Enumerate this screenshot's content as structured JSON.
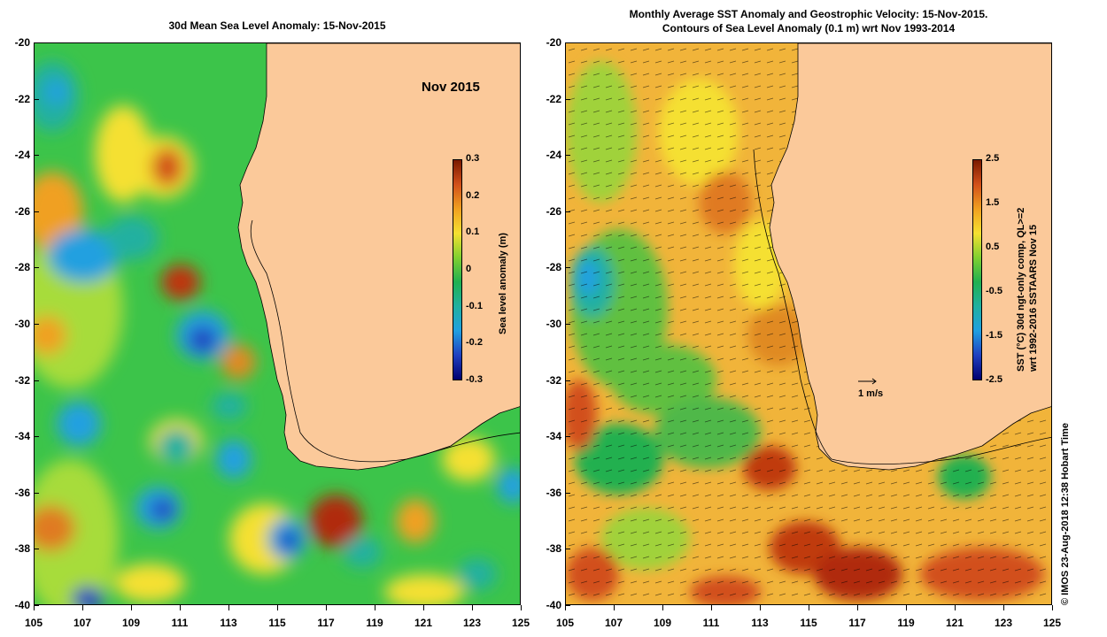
{
  "left_panel": {
    "title": "30d Mean Sea Level Anomaly: 15-Nov-2015",
    "month_label": "Nov 2015",
    "colorbar": {
      "label": "Sea level anomaly (m)",
      "ticks": [
        "0.3",
        "0.2",
        "0.1",
        "0",
        "-0.1",
        "-0.2",
        "-0.3"
      ],
      "colors": [
        "#7a1a00",
        "#d2501a",
        "#f0a020",
        "#f5e030",
        "#80d030",
        "#20b050",
        "#20b0a0",
        "#20a0e0",
        "#2040c0",
        "#000070"
      ]
    }
  },
  "right_panel": {
    "title_line1": "Monthly Average SST Anomaly  and Geostrophic Velocity: 15-Nov-2015.",
    "title_line2": "Contours of Sea Level Anomaly (0.1 m) wrt Nov 1993-2014",
    "scale_label": "1 m/s",
    "colorbar": {
      "label_line1": "SST (°C) 30d ngt-only comp, QL>=2",
      "label_line2": "wrt 1992-2016 SSTAARS Nov 15",
      "ticks": [
        "2.5",
        "1.5",
        "0.5",
        "-0.5",
        "-1.5",
        "-2.5"
      ],
      "colors": [
        "#7a1a00",
        "#d2501a",
        "#f0a020",
        "#f5e030",
        "#80d030",
        "#20b050",
        "#20b0a0",
        "#20a0e0",
        "#2040c0",
        "#000070"
      ]
    }
  },
  "axes": {
    "lat_ticks": [
      "-20",
      "-22",
      "-24",
      "-26",
      "-28",
      "-30",
      "-32",
      "-34",
      "-36",
      "-38",
      "-40"
    ],
    "lon_ticks": [
      "105",
      "107",
      "109",
      "111",
      "113",
      "115",
      "117",
      "119",
      "121",
      "123",
      "125"
    ]
  },
  "copyright": "© IMOS 23-Aug-2018 12:38 Hobart Time",
  "colors": {
    "land": "#fbc99a",
    "sla_background": "#3cc44a",
    "sst_background": "#f1b43a"
  }
}
